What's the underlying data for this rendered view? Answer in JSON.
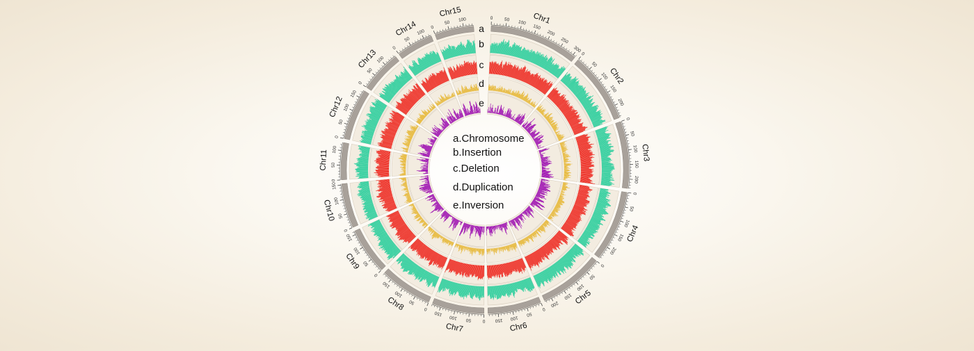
{
  "chart_data": {
    "type": "circos",
    "chromosomes": [
      {
        "name": "Chr1",
        "length": 310,
        "ticks": [
          0,
          50,
          100,
          150,
          200,
          250,
          300
        ]
      },
      {
        "name": "Chr2",
        "length": 245,
        "ticks": [
          0,
          50,
          100,
          150,
          200
        ]
      },
      {
        "name": "Chr3",
        "length": 232,
        "ticks": [
          0,
          50,
          100,
          150,
          200
        ]
      },
      {
        "name": "Chr4",
        "length": 245,
        "ticks": [
          0,
          50,
          100,
          150,
          200
        ]
      },
      {
        "name": "Chr5",
        "length": 225,
        "ticks": [
          0,
          50,
          100,
          150,
          200
        ]
      },
      {
        "name": "Chr6",
        "length": 185,
        "ticks": [
          0,
          50,
          100,
          150
        ]
      },
      {
        "name": "Chr7",
        "length": 180,
        "ticks": [
          0,
          50,
          100,
          150
        ]
      },
      {
        "name": "Chr8",
        "length": 182,
        "ticks": [
          0,
          50,
          100,
          150
        ]
      },
      {
        "name": "Chr9",
        "length": 162,
        "ticks": [
          0,
          50,
          100,
          150
        ]
      },
      {
        "name": "Chr10",
        "length": 154,
        "ticks": [
          0,
          50,
          100,
          150
        ]
      },
      {
        "name": "Chr11",
        "length": 128,
        "ticks": [
          0,
          50,
          100
        ]
      },
      {
        "name": "Chr12",
        "length": 178,
        "ticks": [
          0,
          50,
          100,
          150
        ]
      },
      {
        "name": "Chr13",
        "length": 145,
        "ticks": [
          0,
          50,
          100
        ]
      },
      {
        "name": "Chr14",
        "length": 127,
        "ticks": [
          0,
          50,
          100
        ]
      },
      {
        "name": "Chr15",
        "length": 135,
        "ticks": [
          0,
          50,
          100
        ]
      }
    ],
    "tracks": [
      {
        "letter": "a",
        "label": "a.Chromosome",
        "color": "#a8a19a",
        "kind": "ideogram"
      },
      {
        "letter": "b",
        "label": "b.Insertion",
        "color": "#2fcf9e",
        "kind": "histogram"
      },
      {
        "letter": "c",
        "label": "c.Deletion",
        "color": "#ee2b22",
        "kind": "histogram"
      },
      {
        "letter": "d",
        "label": "d.Duplication",
        "color": "#e6b52e",
        "kind": "histogram"
      },
      {
        "letter": "e",
        "label": "e.Inversion",
        "color": "#9d0fb1",
        "kind": "histogram"
      }
    ]
  },
  "legend": [
    {
      "text": "a.Chromosome"
    },
    {
      "text": "b.Insertion"
    },
    {
      "text": "c.Deletion"
    },
    {
      "text": "d.Duplication"
    },
    {
      "text": "e.Inversion"
    }
  ]
}
